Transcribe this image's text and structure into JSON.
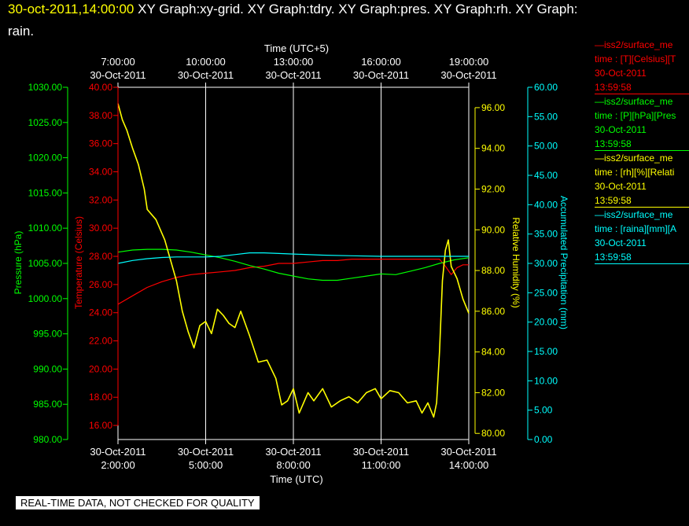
{
  "title": {
    "timestamp": "30-oct-2011,14:00:00",
    "text_line1": "XY Graph:xy-grid.  XY Graph:tdry.  XY Graph:pres.  XY Graph:rh.  XY Graph:",
    "text_line2": "rain."
  },
  "colors": {
    "temperature": "#ff0000",
    "pressure": "#00ff00",
    "humidity": "#ffff00",
    "precip": "#00ffff",
    "grid": "#ffffff",
    "background": "#000000"
  },
  "legend": [
    {
      "line1": "—iss2/surface_me",
      "line2": "time : [T][Celsius][T",
      "date": "30-Oct-2011",
      "time": "13:59:58",
      "color": "#ff0000"
    },
    {
      "line1": "—iss2/surface_me",
      "line2": "time : [P][hPa][Pres",
      "date": "30-Oct-2011",
      "time": "13:59:58",
      "color": "#00ff00"
    },
    {
      "line1": "—iss2/surface_me",
      "line2": "time : [rh][%][Relati",
      "date": "30-Oct-2011",
      "time": "13:59:58",
      "color": "#ffff00"
    },
    {
      "line1": "—iss2/surface_me",
      "line2": "time : [raina][mm][A",
      "date": "30-Oct-2011",
      "time": "13:59:58",
      "color": "#00ffff"
    }
  ],
  "banner": "REAL-TIME DATA, NOT CHECKED FOR QUALITY",
  "chart_data": {
    "type": "line",
    "x_top_label": "Time (UTC+5)",
    "x_bottom_label": "Time (UTC)",
    "x_range_utc_hours": [
      2.0,
      14.0
    ],
    "x_ticks_utc": [
      {
        "date": "30-Oct-2011",
        "time": "2:00:00"
      },
      {
        "date": "30-Oct-2011",
        "time": "5:00:00"
      },
      {
        "date": "30-Oct-2011",
        "time": "8:00:00"
      },
      {
        "date": "30-Oct-2011",
        "time": "11:00:00"
      },
      {
        "date": "30-Oct-2011",
        "time": "14:00:00"
      }
    ],
    "x_ticks_local": [
      {
        "time": "7:00:00",
        "date": "30-Oct-2011"
      },
      {
        "time": "10:00:00",
        "date": "30-Oct-2011"
      },
      {
        "time": "13:00:00",
        "date": "30-Oct-2011"
      },
      {
        "time": "16:00:00",
        "date": "30-Oct-2011"
      },
      {
        "time": "19:00:00",
        "date": "30-Oct-2011"
      }
    ],
    "axes": {
      "pressure": {
        "label": "Pressure (hPa)",
        "range": [
          980,
          1030
        ],
        "ticks": [
          "980.00",
          "985.00",
          "990.00",
          "995.00",
          "1000.00",
          "1005.00",
          "1010.00",
          "1015.00",
          "1020.00",
          "1025.00",
          "1030.00"
        ]
      },
      "temperature": {
        "label": "Temperature (Celsius)",
        "range": [
          15,
          40
        ],
        "ticks": [
          "16.00",
          "18.00",
          "20.00",
          "22.00",
          "24.00",
          "26.00",
          "28.00",
          "30.00",
          "32.00",
          "34.00",
          "36.00",
          "38.00",
          "40.00"
        ]
      },
      "humidity": {
        "label": "Relative Humidity (%)",
        "range": [
          79.7,
          97.0
        ],
        "ticks": [
          "80.00",
          "82.00",
          "84.00",
          "86.00",
          "88.00",
          "90.00",
          "92.00",
          "94.00",
          "96.00"
        ]
      },
      "precip": {
        "label": "Accumulated Precipitation (mm)",
        "range": [
          0,
          60
        ],
        "ticks": [
          "0.00",
          "5.00",
          "10.00",
          "15.00",
          "20.00",
          "25.00",
          "30.00",
          "35.00",
          "40.00",
          "45.00",
          "50.00",
          "55.00",
          "60.00"
        ]
      }
    },
    "series": [
      {
        "name": "temperature",
        "axis": "temperature",
        "color": "#ff0000",
        "points": [
          [
            2.0,
            24.6
          ],
          [
            2.5,
            25.2
          ],
          [
            3.0,
            25.8
          ],
          [
            3.5,
            26.2
          ],
          [
            4.0,
            26.5
          ],
          [
            4.5,
            26.7
          ],
          [
            5.0,
            26.8
          ],
          [
            5.5,
            26.9
          ],
          [
            6.0,
            27.0
          ],
          [
            6.5,
            27.2
          ],
          [
            7.0,
            27.3
          ],
          [
            7.5,
            27.5
          ],
          [
            8.0,
            27.5
          ],
          [
            8.5,
            27.6
          ],
          [
            9.0,
            27.7
          ],
          [
            9.5,
            27.7
          ],
          [
            10.0,
            27.8
          ],
          [
            10.5,
            27.8
          ],
          [
            11.0,
            27.8
          ],
          [
            11.5,
            27.8
          ],
          [
            12.0,
            27.8
          ],
          [
            12.5,
            27.8
          ],
          [
            13.0,
            27.8
          ],
          [
            13.2,
            27.3
          ],
          [
            13.4,
            26.7
          ],
          [
            13.6,
            27.2
          ],
          [
            13.8,
            27.4
          ],
          [
            14.0,
            27.4
          ]
        ]
      },
      {
        "name": "pressure",
        "axis": "pressure",
        "color": "#00ff00",
        "points": [
          [
            2.0,
            1006.6
          ],
          [
            2.5,
            1006.9
          ],
          [
            3.0,
            1007.0
          ],
          [
            3.5,
            1007.0
          ],
          [
            4.0,
            1006.9
          ],
          [
            4.5,
            1006.6
          ],
          [
            5.0,
            1006.2
          ],
          [
            5.5,
            1005.8
          ],
          [
            6.0,
            1005.3
          ],
          [
            6.5,
            1004.7
          ],
          [
            7.0,
            1004.2
          ],
          [
            7.5,
            1003.6
          ],
          [
            8.0,
            1003.2
          ],
          [
            8.5,
            1002.8
          ],
          [
            9.0,
            1002.6
          ],
          [
            9.5,
            1002.6
          ],
          [
            10.0,
            1002.9
          ],
          [
            10.5,
            1003.2
          ],
          [
            11.0,
            1003.5
          ],
          [
            11.5,
            1003.4
          ],
          [
            12.0,
            1003.9
          ],
          [
            12.5,
            1004.4
          ],
          [
            13.0,
            1005.0
          ],
          [
            13.5,
            1005.5
          ],
          [
            14.0,
            1005.8
          ]
        ]
      },
      {
        "name": "humidity",
        "axis": "humidity",
        "color": "#ffff00",
        "points": [
          [
            2.0,
            96.2
          ],
          [
            2.15,
            95.4
          ],
          [
            2.3,
            94.9
          ],
          [
            2.5,
            94.0
          ],
          [
            2.7,
            93.2
          ],
          [
            2.9,
            92.0
          ],
          [
            3.0,
            91.0
          ],
          [
            3.3,
            90.5
          ],
          [
            3.6,
            89.5
          ],
          [
            3.8,
            88.5
          ],
          [
            4.0,
            87.5
          ],
          [
            4.2,
            86.0
          ],
          [
            4.4,
            85.0
          ],
          [
            4.6,
            84.2
          ],
          [
            4.8,
            85.3
          ],
          [
            5.0,
            85.5
          ],
          [
            5.2,
            84.9
          ],
          [
            5.4,
            86.1
          ],
          [
            5.6,
            85.8
          ],
          [
            5.8,
            85.4
          ],
          [
            6.0,
            85.2
          ],
          [
            6.2,
            86.0
          ],
          [
            6.5,
            84.8
          ],
          [
            6.8,
            83.5
          ],
          [
            7.1,
            83.6
          ],
          [
            7.4,
            82.7
          ],
          [
            7.6,
            81.4
          ],
          [
            7.8,
            81.6
          ],
          [
            8.0,
            82.2
          ],
          [
            8.2,
            81.0
          ],
          [
            8.5,
            82.0
          ],
          [
            8.7,
            81.6
          ],
          [
            9.0,
            82.2
          ],
          [
            9.3,
            81.3
          ],
          [
            9.6,
            81.6
          ],
          [
            9.9,
            81.8
          ],
          [
            10.2,
            81.5
          ],
          [
            10.5,
            82.0
          ],
          [
            10.8,
            82.2
          ],
          [
            11.0,
            81.7
          ],
          [
            11.3,
            82.1
          ],
          [
            11.6,
            82.0
          ],
          [
            11.9,
            81.5
          ],
          [
            12.2,
            81.6
          ],
          [
            12.4,
            81.0
          ],
          [
            12.6,
            81.5
          ],
          [
            12.8,
            80.8
          ],
          [
            12.9,
            81.5
          ],
          [
            13.0,
            84.0
          ],
          [
            13.1,
            87.5
          ],
          [
            13.2,
            89.0
          ],
          [
            13.3,
            89.5
          ],
          [
            13.4,
            88.2
          ],
          [
            13.6,
            87.6
          ],
          [
            13.8,
            86.6
          ],
          [
            14.0,
            85.9
          ]
        ]
      },
      {
        "name": "precipitation",
        "axis": "precip",
        "color": "#00ffff",
        "points": [
          [
            2.0,
            30.0
          ],
          [
            2.5,
            30.5
          ],
          [
            3.0,
            30.8
          ],
          [
            3.5,
            31.0
          ],
          [
            4.0,
            31.1
          ],
          [
            5.0,
            31.1
          ],
          [
            5.5,
            31.2
          ],
          [
            6.0,
            31.5
          ],
          [
            6.5,
            31.8
          ],
          [
            7.0,
            31.8
          ],
          [
            8.0,
            31.6
          ],
          [
            9.0,
            31.4
          ],
          [
            10.0,
            31.3
          ],
          [
            11.0,
            31.2
          ],
          [
            12.0,
            31.2
          ],
          [
            13.0,
            31.2
          ],
          [
            14.0,
            31.2
          ]
        ]
      }
    ],
    "grid": true,
    "legend_position": "right"
  }
}
